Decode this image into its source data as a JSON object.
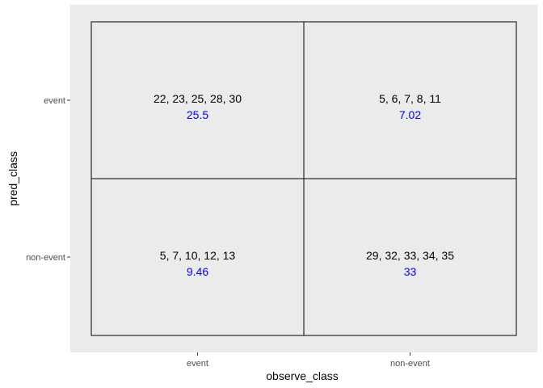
{
  "chart_data": {
    "type": "table",
    "xlabel": "observe_class",
    "ylabel": "pred_class",
    "x_categories": [
      "event",
      "non-event"
    ],
    "y_categories": [
      "event",
      "non-event"
    ],
    "cells": [
      {
        "observe_class": "event",
        "pred_class": "event",
        "values_text": "22, 23, 25, 28, 30",
        "stat": "25.5"
      },
      {
        "observe_class": "non-event",
        "pred_class": "event",
        "values_text": "5,  6,  7,  8, 11",
        "stat": "7.02"
      },
      {
        "observe_class": "event",
        "pred_class": "non-event",
        "values_text": "5,  7, 10, 12, 13",
        "stat": "9.46"
      },
      {
        "observe_class": "non-event",
        "pred_class": "non-event",
        "values_text": "29, 32, 33, 34, 35",
        "stat": "33"
      }
    ],
    "panel_background": "#ebebeb",
    "cell_border_color": "#000000",
    "stat_color": "#0000ff",
    "grid": false
  }
}
